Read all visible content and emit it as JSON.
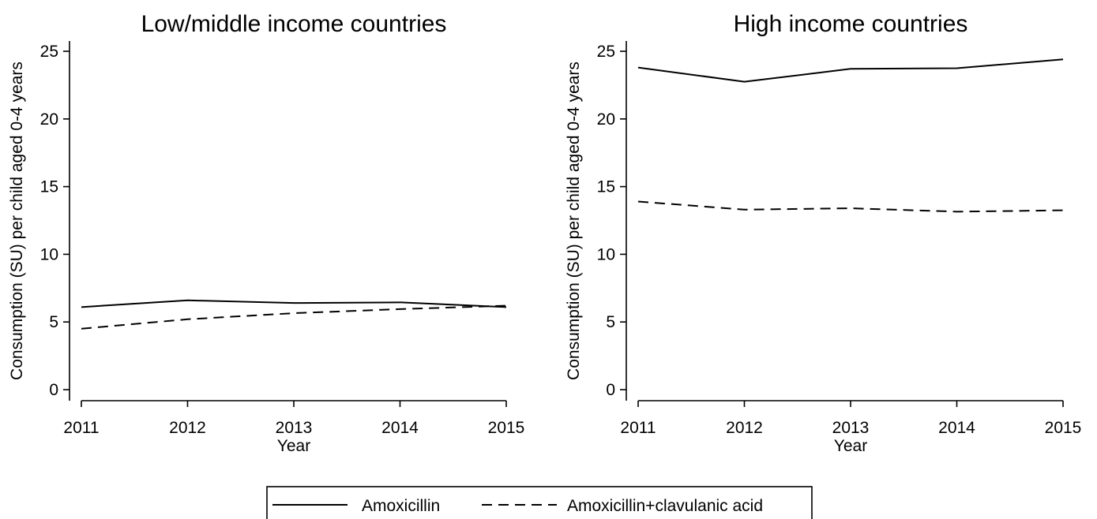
{
  "chart_data": [
    {
      "type": "line",
      "title": "Low/middle income countries",
      "xlabel": "Year",
      "ylabel": "Consumption (SU) per child aged 0-4 years",
      "x": [
        2011,
        2012,
        2013,
        2014,
        2015
      ],
      "x_ticks": [
        "2011",
        "2012",
        "2013",
        "2014",
        "2015"
      ],
      "y_ticks": [
        "0",
        "5",
        "10",
        "15",
        "20",
        "25"
      ],
      "ylim": [
        0,
        25
      ],
      "grid": false,
      "series": [
        {
          "name": "Amoxicillin",
          "values": [
            6.1,
            6.6,
            6.4,
            6.45,
            6.1
          ]
        },
        {
          "name": "Amoxicillin+clavulanic acid",
          "values": [
            4.5,
            5.2,
            5.65,
            5.95,
            6.2
          ]
        }
      ]
    },
    {
      "type": "line",
      "title": "High income countries",
      "xlabel": "Year",
      "ylabel": "Consumption (SU) per child aged 0-4 years",
      "x": [
        2011,
        2012,
        2013,
        2014,
        2015
      ],
      "x_ticks": [
        "2011",
        "2012",
        "2013",
        "2014",
        "2015"
      ],
      "y_ticks": [
        "0",
        "5",
        "10",
        "15",
        "20",
        "25"
      ],
      "ylim": [
        0,
        25
      ],
      "grid": false,
      "series": [
        {
          "name": "Amoxicillin",
          "values": [
            23.8,
            22.75,
            23.7,
            23.75,
            24.4
          ]
        },
        {
          "name": "Amoxicillin+clavulanic acid",
          "values": [
            13.9,
            13.3,
            13.4,
            13.15,
            13.25
          ]
        }
      ]
    }
  ],
  "legend": {
    "position": "bottom-center",
    "items": [
      {
        "label": "Amoxicillin",
        "style": "solid"
      },
      {
        "label": "Amoxicillin+clavulanic acid",
        "style": "dashed"
      }
    ]
  },
  "colors": {
    "line": "#000000",
    "background": "#ffffff"
  }
}
